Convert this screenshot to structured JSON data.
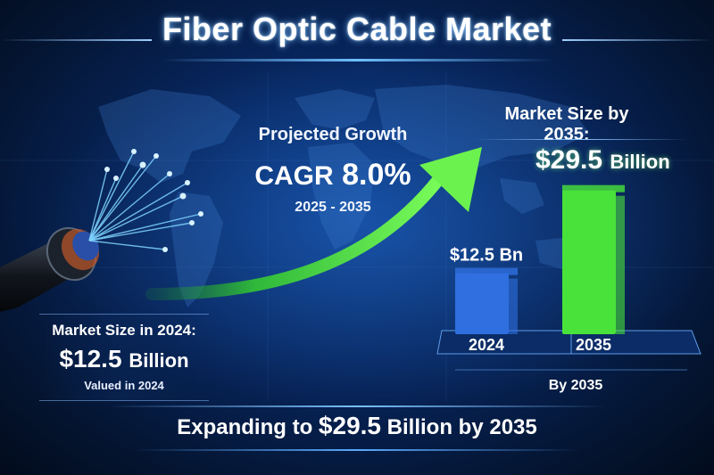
{
  "title": "Fiber Optic Cable Market",
  "growth": {
    "label": "Projected Growth",
    "cagr_prefix": "CAGR",
    "cagr_value": "8.0%",
    "period": "2025 - 2035"
  },
  "forecast": {
    "label": "Market Size by 2035:",
    "value": "$29.5",
    "unit": "Billion"
  },
  "base": {
    "label": "Market Size in 2024:",
    "value": "$12.5",
    "unit": "Billion",
    "note": "Valued in 2024"
  },
  "banner": {
    "prefix": "Expanding to",
    "value": "$29.5",
    "suffix": "Billion by 2035"
  },
  "colors": {
    "background": "#07245a",
    "bar_2024": "#2f6fe0",
    "bar_2035": "#49e23a",
    "arrow": "#5ee04a",
    "fiber_glow": "#7fd4ff"
  },
  "icons": [
    "fiber-optic-cable-icon",
    "world-map-icon",
    "growth-arrow-icon"
  ],
  "chart_data": {
    "type": "bar",
    "categories": [
      "2024",
      "2035"
    ],
    "values": [
      12.5,
      29.5
    ],
    "data_labels": [
      "$12.5 Bn",
      ""
    ],
    "caption": "By 2035",
    "ylim": [
      0,
      32
    ],
    "xlabel": "",
    "ylabel": ""
  }
}
